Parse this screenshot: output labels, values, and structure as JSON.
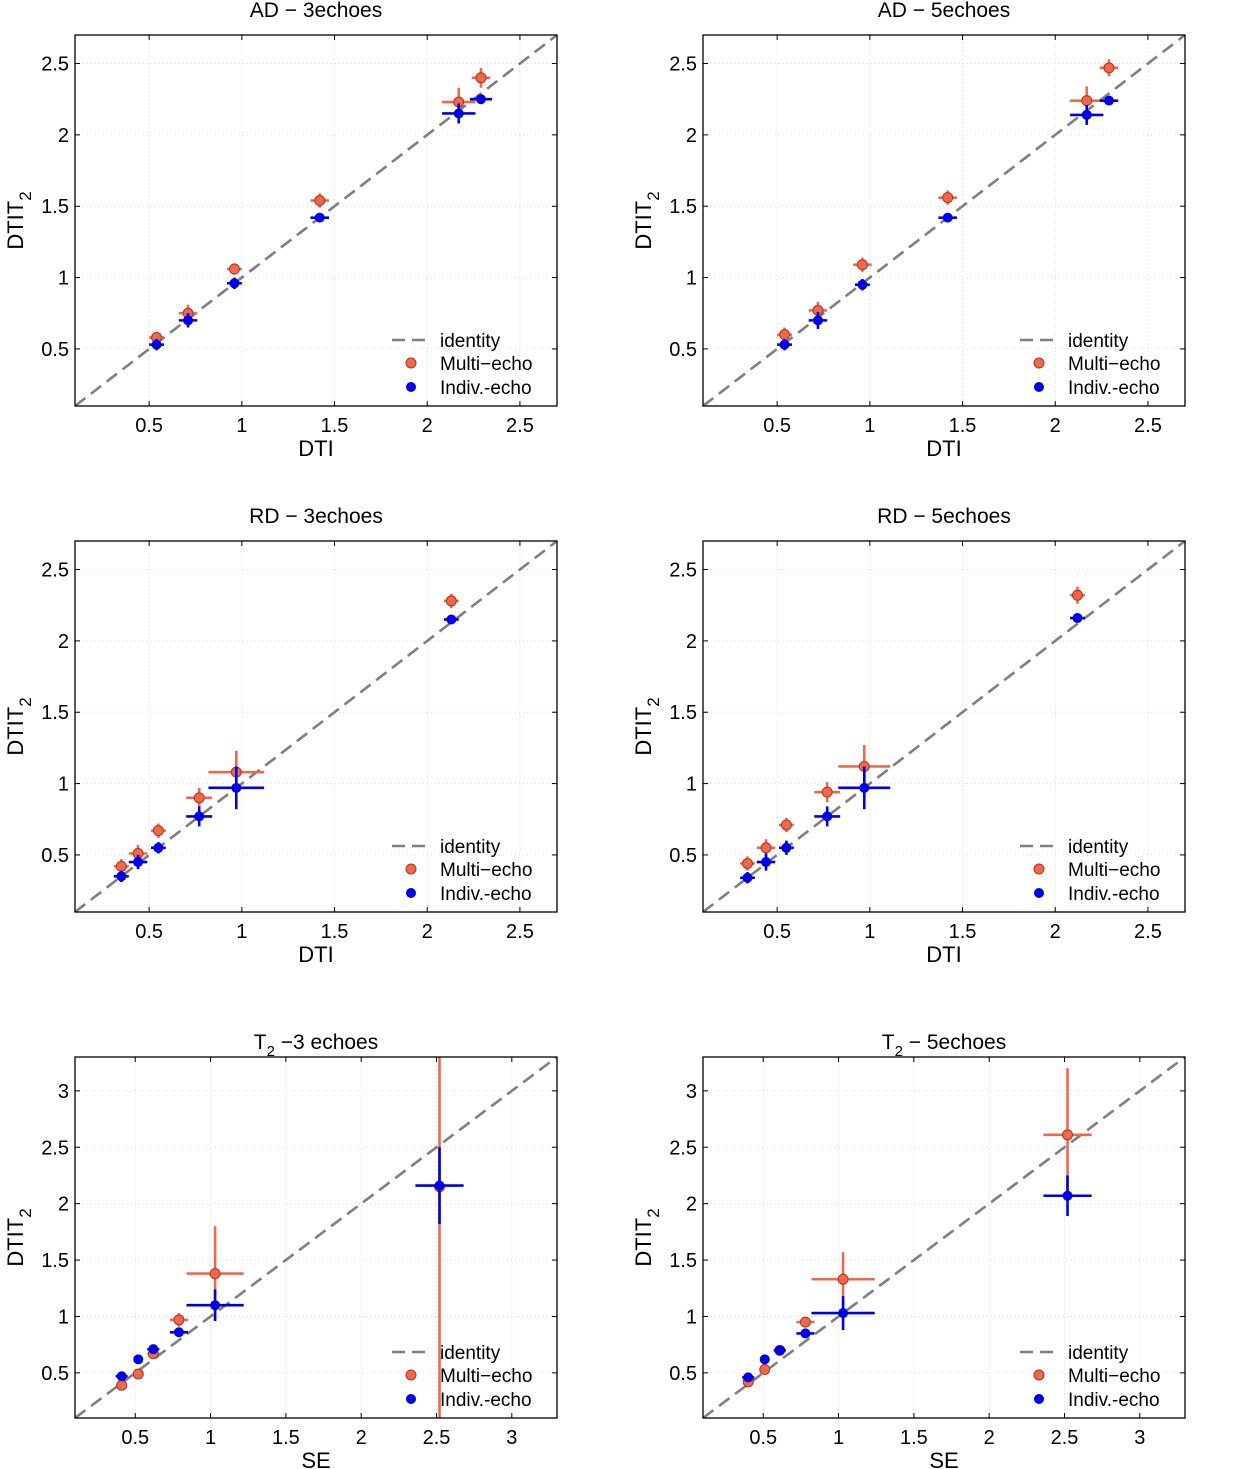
{
  "colors": {
    "identity": "#7f7f7f",
    "multi": "#f0684c",
    "multi_edge": "#b5301a",
    "indiv": "#0000e6",
    "frame": "#000000",
    "grid": "#d9d9d9"
  },
  "chart_data": [
    {
      "type": "scatter",
      "title": "AD − 3echoes",
      "xlabel": "DTI",
      "ylabel": "DTIT",
      "ylabel_sub": "2",
      "xlim": [
        0.1,
        2.7
      ],
      "ylim": [
        0.1,
        2.7
      ],
      "xticks": [
        0.5,
        1,
        1.5,
        2,
        2.5
      ],
      "xtick_labels": [
        "0.5",
        "1",
        "1.5",
        "2",
        "2.5"
      ],
      "yticks": [
        0.5,
        1,
        1.5,
        2,
        2.5
      ],
      "ytick_labels": [
        "0.5",
        "1",
        "1.5",
        "2",
        "2.5"
      ],
      "grid": true,
      "legend": {
        "position": "bottom-right",
        "entries": [
          "identity",
          "Multi−echo",
          "Indiv.-echo"
        ]
      },
      "series": [
        {
          "name": "Multi−echo",
          "points": [
            {
              "x": 0.54,
              "y": 0.58,
              "xerr": 0.04,
              "yerr": 0.04
            },
            {
              "x": 0.71,
              "y": 0.75,
              "xerr": 0.05,
              "yerr": 0.06
            },
            {
              "x": 0.96,
              "y": 1.06,
              "xerr": 0.04,
              "yerr": 0.04
            },
            {
              "x": 1.42,
              "y": 1.54,
              "xerr": 0.05,
              "yerr": 0.05
            },
            {
              "x": 2.17,
              "y": 2.23,
              "xerr": 0.09,
              "yerr": 0.1
            },
            {
              "x": 2.29,
              "y": 2.4,
              "xerr": 0.05,
              "yerr": 0.07
            }
          ]
        },
        {
          "name": "Indiv.-echo",
          "points": [
            {
              "x": 0.54,
              "y": 0.53,
              "xerr": 0.04,
              "yerr": 0.04
            },
            {
              "x": 0.71,
              "y": 0.7,
              "xerr": 0.05,
              "yerr": 0.05
            },
            {
              "x": 0.96,
              "y": 0.96,
              "xerr": 0.04,
              "yerr": 0.04
            },
            {
              "x": 1.42,
              "y": 1.42,
              "xerr": 0.05,
              "yerr": 0.03
            },
            {
              "x": 2.17,
              "y": 2.15,
              "xerr": 0.09,
              "yerr": 0.07
            },
            {
              "x": 2.29,
              "y": 2.25,
              "xerr": 0.06,
              "yerr": 0.03
            }
          ]
        }
      ]
    },
    {
      "type": "scatter",
      "title": "AD − 5echoes",
      "xlabel": "DTI",
      "ylabel": "DTIT",
      "ylabel_sub": "2",
      "xlim": [
        0.1,
        2.7
      ],
      "ylim": [
        0.1,
        2.7
      ],
      "xticks": [
        0.5,
        1,
        1.5,
        2,
        2.5
      ],
      "xtick_labels": [
        "0.5",
        "1",
        "1.5",
        "2",
        "2.5"
      ],
      "yticks": [
        0.5,
        1,
        1.5,
        2,
        2.5
      ],
      "ytick_labels": [
        "0.5",
        "1",
        "1.5",
        "2",
        "2.5"
      ],
      "grid": true,
      "legend": {
        "position": "bottom-right",
        "entries": [
          "identity",
          "Multi−echo",
          "Indiv.-echo"
        ]
      },
      "series": [
        {
          "name": "Multi−echo",
          "points": [
            {
              "x": 0.54,
              "y": 0.6,
              "xerr": 0.04,
              "yerr": 0.05
            },
            {
              "x": 0.72,
              "y": 0.77,
              "xerr": 0.05,
              "yerr": 0.06
            },
            {
              "x": 0.96,
              "y": 1.09,
              "xerr": 0.05,
              "yerr": 0.05
            },
            {
              "x": 1.42,
              "y": 1.56,
              "xerr": 0.05,
              "yerr": 0.05
            },
            {
              "x": 2.17,
              "y": 2.24,
              "xerr": 0.09,
              "yerr": 0.1
            },
            {
              "x": 2.29,
              "y": 2.47,
              "xerr": 0.05,
              "yerr": 0.06
            }
          ]
        },
        {
          "name": "Indiv.-echo",
          "points": [
            {
              "x": 0.54,
              "y": 0.53,
              "xerr": 0.04,
              "yerr": 0.04
            },
            {
              "x": 0.72,
              "y": 0.7,
              "xerr": 0.05,
              "yerr": 0.06
            },
            {
              "x": 0.96,
              "y": 0.95,
              "xerr": 0.04,
              "yerr": 0.04
            },
            {
              "x": 1.42,
              "y": 1.42,
              "xerr": 0.05,
              "yerr": 0.03
            },
            {
              "x": 2.17,
              "y": 2.14,
              "xerr": 0.09,
              "yerr": 0.07
            },
            {
              "x": 2.29,
              "y": 2.24,
              "xerr": 0.05,
              "yerr": 0.03
            }
          ]
        }
      ]
    },
    {
      "type": "scatter",
      "title": "RD − 3echoes",
      "xlabel": "DTI",
      "ylabel": "DTIT",
      "ylabel_sub": "2",
      "xlim": [
        0.1,
        2.7
      ],
      "ylim": [
        0.1,
        2.7
      ],
      "xticks": [
        0.5,
        1,
        1.5,
        2,
        2.5
      ],
      "xtick_labels": [
        "0.5",
        "1",
        "1.5",
        "2",
        "2.5"
      ],
      "yticks": [
        0.5,
        1,
        1.5,
        2,
        2.5
      ],
      "ytick_labels": [
        "0.5",
        "1",
        "1.5",
        "2",
        "2.5"
      ],
      "grid": true,
      "legend": {
        "position": "bottom-right",
        "entries": [
          "identity",
          "Multi−echo",
          "Indiv.-echo"
        ]
      },
      "series": [
        {
          "name": "Multi−echo",
          "points": [
            {
              "x": 0.35,
              "y": 0.42,
              "xerr": 0.04,
              "yerr": 0.05
            },
            {
              "x": 0.44,
              "y": 0.51,
              "xerr": 0.05,
              "yerr": 0.06
            },
            {
              "x": 0.55,
              "y": 0.67,
              "xerr": 0.04,
              "yerr": 0.05
            },
            {
              "x": 0.77,
              "y": 0.9,
              "xerr": 0.07,
              "yerr": 0.07
            },
            {
              "x": 0.97,
              "y": 1.08,
              "xerr": 0.15,
              "yerr": 0.15
            },
            {
              "x": 2.13,
              "y": 2.28,
              "xerr": 0.04,
              "yerr": 0.05
            }
          ]
        },
        {
          "name": "Indiv.-echo",
          "points": [
            {
              "x": 0.35,
              "y": 0.35,
              "xerr": 0.04,
              "yerr": 0.04
            },
            {
              "x": 0.44,
              "y": 0.45,
              "xerr": 0.05,
              "yerr": 0.05
            },
            {
              "x": 0.55,
              "y": 0.55,
              "xerr": 0.04,
              "yerr": 0.04
            },
            {
              "x": 0.77,
              "y": 0.77,
              "xerr": 0.07,
              "yerr": 0.07
            },
            {
              "x": 0.97,
              "y": 0.97,
              "xerr": 0.15,
              "yerr": 0.15
            },
            {
              "x": 2.13,
              "y": 2.15,
              "xerr": 0.04,
              "yerr": 0.03
            }
          ]
        }
      ]
    },
    {
      "type": "scatter",
      "title": "RD − 5echoes",
      "xlabel": "DTI",
      "ylabel": "DTIT",
      "ylabel_sub": "2",
      "xlim": [
        0.1,
        2.7
      ],
      "ylim": [
        0.1,
        2.7
      ],
      "xticks": [
        0.5,
        1,
        1.5,
        2,
        2.5
      ],
      "xtick_labels": [
        "0.5",
        "1",
        "1.5",
        "2",
        "2.5"
      ],
      "yticks": [
        0.5,
        1,
        1.5,
        2,
        2.5
      ],
      "ytick_labels": [
        "0.5",
        "1",
        "1.5",
        "2",
        "2.5"
      ],
      "grid": true,
      "legend": {
        "position": "bottom-right",
        "entries": [
          "identity",
          "Multi−echo",
          "Indiv.-echo"
        ]
      },
      "series": [
        {
          "name": "Multi−echo",
          "points": [
            {
              "x": 0.34,
              "y": 0.44,
              "xerr": 0.04,
              "yerr": 0.05
            },
            {
              "x": 0.44,
              "y": 0.55,
              "xerr": 0.05,
              "yerr": 0.06
            },
            {
              "x": 0.55,
              "y": 0.71,
              "xerr": 0.04,
              "yerr": 0.05
            },
            {
              "x": 0.77,
              "y": 0.94,
              "xerr": 0.07,
              "yerr": 0.07
            },
            {
              "x": 0.97,
              "y": 1.12,
              "xerr": 0.14,
              "yerr": 0.15
            },
            {
              "x": 2.12,
              "y": 2.32,
              "xerr": 0.04,
              "yerr": 0.06
            }
          ]
        },
        {
          "name": "Indiv.-echo",
          "points": [
            {
              "x": 0.34,
              "y": 0.34,
              "xerr": 0.04,
              "yerr": 0.04
            },
            {
              "x": 0.44,
              "y": 0.45,
              "xerr": 0.05,
              "yerr": 0.06
            },
            {
              "x": 0.55,
              "y": 0.55,
              "xerr": 0.04,
              "yerr": 0.05
            },
            {
              "x": 0.77,
              "y": 0.77,
              "xerr": 0.07,
              "yerr": 0.07
            },
            {
              "x": 0.97,
              "y": 0.97,
              "xerr": 0.14,
              "yerr": 0.15
            },
            {
              "x": 2.12,
              "y": 2.16,
              "xerr": 0.04,
              "yerr": 0.03
            }
          ]
        }
      ]
    },
    {
      "type": "scatter",
      "title": "T",
      "title_sub": "2",
      "title_rest": " −3 echoes",
      "xlabel": "SE",
      "ylabel": "DTIT",
      "ylabel_sub": "2",
      "xlim": [
        0.1,
        3.3
      ],
      "ylim": [
        0.1,
        3.3
      ],
      "xticks": [
        0.5,
        1,
        1.5,
        2,
        2.5,
        3
      ],
      "xtick_labels": [
        "0.5",
        "1",
        "1.5",
        "2",
        "2.5",
        "3"
      ],
      "yticks": [
        0.5,
        1,
        1.5,
        2,
        2.5,
        3
      ],
      "ytick_labels": [
        "0.5",
        "1",
        "1.5",
        "2",
        "2.5",
        "3"
      ],
      "grid": true,
      "legend": {
        "position": "bottom-right",
        "entries": [
          "identity",
          "Multi−echo",
          "Indiv.-echo"
        ]
      },
      "series": [
        {
          "name": "Multi−echo",
          "points": [
            {
              "x": 0.41,
              "y": 0.39,
              "xerr": 0.03,
              "yerr": 0.03
            },
            {
              "x": 0.52,
              "y": 0.49,
              "xerr": 0.03,
              "yerr": 0.03
            },
            {
              "x": 0.62,
              "y": 0.67,
              "xerr": 0.04,
              "yerr": 0.04
            },
            {
              "x": 0.79,
              "y": 0.97,
              "xerr": 0.06,
              "yerr": 0.06
            },
            {
              "x": 1.03,
              "y": 1.38,
              "xerr": 0.19,
              "yerr": 0.42
            },
            {
              "x": 2.52,
              "y": 2.15,
              "xerr": 0.0,
              "yerr": 2.6
            }
          ]
        },
        {
          "name": "Indiv.-echo",
          "points": [
            {
              "x": 0.41,
              "y": 0.47,
              "xerr": 0.04,
              "yerr": 0.03
            },
            {
              "x": 0.52,
              "y": 0.62,
              "xerr": 0.03,
              "yerr": 0.03
            },
            {
              "x": 0.62,
              "y": 0.71,
              "xerr": 0.04,
              "yerr": 0.03
            },
            {
              "x": 0.79,
              "y": 0.86,
              "xerr": 0.06,
              "yerr": 0.04
            },
            {
              "x": 1.03,
              "y": 1.1,
              "xerr": 0.19,
              "yerr": 0.14
            },
            {
              "x": 2.52,
              "y": 2.16,
              "xerr": 0.16,
              "yerr": 0.34
            }
          ]
        }
      ]
    },
    {
      "type": "scatter",
      "title": "T",
      "title_sub": "2",
      "title_rest": " − 5echoes",
      "xlabel": "SE",
      "ylabel": "DTIT",
      "ylabel_sub": "2",
      "xlim": [
        0.1,
        3.3
      ],
      "ylim": [
        0.1,
        3.3
      ],
      "xticks": [
        0.5,
        1,
        1.5,
        2,
        2.5,
        3
      ],
      "xtick_labels": [
        "0.5",
        "1",
        "1.5",
        "2",
        "2.5",
        "3"
      ],
      "yticks": [
        0.5,
        1,
        1.5,
        2,
        2.5,
        3
      ],
      "ytick_labels": [
        "0.5",
        "1",
        "1.5",
        "2",
        "2.5",
        "3"
      ],
      "grid": true,
      "legend": {
        "position": "bottom-right",
        "entries": [
          "identity",
          "Multi−echo",
          "Indiv.-echo"
        ]
      },
      "series": [
        {
          "name": "Multi−echo",
          "points": [
            {
              "x": 0.4,
              "y": 0.42,
              "xerr": 0.03,
              "yerr": 0.03
            },
            {
              "x": 0.51,
              "y": 0.53,
              "xerr": 0.03,
              "yerr": 0.03
            },
            {
              "x": 0.61,
              "y": 0.7,
              "xerr": 0.04,
              "yerr": 0.03
            },
            {
              "x": 0.78,
              "y": 0.95,
              "xerr": 0.06,
              "yerr": 0.04
            },
            {
              "x": 1.03,
              "y": 1.33,
              "xerr": 0.21,
              "yerr": 0.24
            },
            {
              "x": 2.52,
              "y": 2.61,
              "xerr": 0.16,
              "yerr": 0.59
            }
          ]
        },
        {
          "name": "Indiv.-echo",
          "points": [
            {
              "x": 0.4,
              "y": 0.46,
              "xerr": 0.04,
              "yerr": 0.03
            },
            {
              "x": 0.51,
              "y": 0.62,
              "xerr": 0.03,
              "yerr": 0.03
            },
            {
              "x": 0.61,
              "y": 0.7,
              "xerr": 0.04,
              "yerr": 0.03
            },
            {
              "x": 0.78,
              "y": 0.85,
              "xerr": 0.06,
              "yerr": 0.04
            },
            {
              "x": 1.03,
              "y": 1.03,
              "xerr": 0.21,
              "yerr": 0.15
            },
            {
              "x": 2.52,
              "y": 2.07,
              "xerr": 0.16,
              "yerr": 0.18
            }
          ]
        }
      ]
    }
  ]
}
